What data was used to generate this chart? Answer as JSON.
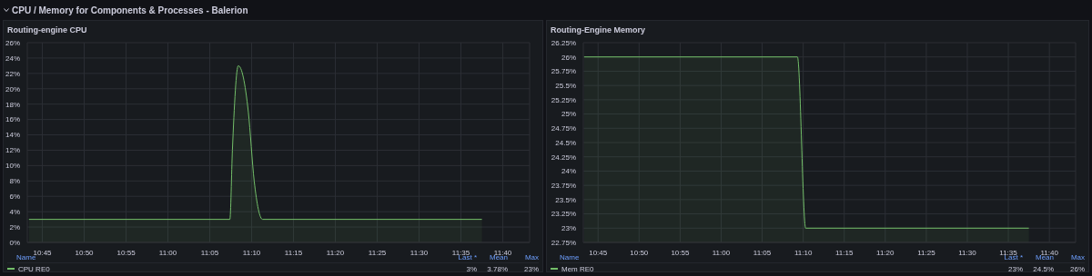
{
  "chart_data": [
    {
      "type": "area",
      "title": "Routing-engine CPU",
      "annotations": [
        "CPU / Memory for Components & Processes - Balerion",
        "Name",
        "Last *",
        "Mean",
        "Max",
        "3%",
        "3.78%",
        "23%"
      ],
      "series": [
        {
          "name": "CPU RE0",
          "color": "#73bf69",
          "x": [
            10.7233,
            11.1233,
            11.1283,
            11.14,
            11.15,
            11.16,
            11.1717,
            11.1883,
            11.625
          ],
          "values": [
            3,
            3,
            12,
            23,
            21.5,
            17,
            8,
            3,
            3
          ]
        }
      ],
      "xlim": [
        10.72,
        11.72
      ],
      "xticks": [
        {
          "value": 10.75,
          "label": "10:45"
        },
        {
          "value": 10.8333,
          "label": "10:50"
        },
        {
          "value": 10.9167,
          "label": "10:55"
        },
        {
          "value": 11,
          "label": "11:00"
        },
        {
          "value": 11.0833,
          "label": "11:05"
        },
        {
          "value": 11.1667,
          "label": "11:10"
        },
        {
          "value": 11.25,
          "label": "11:15"
        },
        {
          "value": 11.3333,
          "label": "11:20"
        },
        {
          "value": 11.4167,
          "label": "11:25"
        },
        {
          "value": 11.5,
          "label": "11:30"
        },
        {
          "value": 11.5833,
          "label": "11:35"
        },
        {
          "value": 11.6667,
          "label": "11:40"
        }
      ],
      "ylim": [
        0,
        26
      ],
      "yticks": [
        {
          "value": 0,
          "label": "0%"
        },
        {
          "value": 2,
          "label": "2%"
        },
        {
          "value": 4,
          "label": "4%"
        },
        {
          "value": 6,
          "label": "6%"
        },
        {
          "value": 8,
          "label": "8%"
        },
        {
          "value": 10,
          "label": "10%"
        },
        {
          "value": 12,
          "label": "12%"
        },
        {
          "value": 14,
          "label": "14%"
        },
        {
          "value": 16,
          "label": "16%"
        },
        {
          "value": 18,
          "label": "18%"
        },
        {
          "value": 20,
          "label": "20%"
        },
        {
          "value": 22,
          "label": "22%"
        },
        {
          "value": 24,
          "label": "24%"
        },
        {
          "value": 26,
          "label": "26%"
        }
      ],
      "grid": true,
      "legend": "bottom"
    },
    {
      "type": "area",
      "title": "Routing-Engine Memory",
      "annotations": [
        "Name",
        "Last *",
        "Mean",
        "Max",
        "23%",
        "24.5%",
        "26%"
      ],
      "series": [
        {
          "name": "Mem RE0",
          "color": "#73bf69",
          "x": [
            10.7217,
            11.155,
            11.1717,
            11.625
          ],
          "values": [
            26,
            26,
            23,
            23
          ]
        }
      ],
      "xlim": [
        10.72,
        11.72
      ],
      "xticks": [
        {
          "value": 10.75,
          "label": "10:45"
        },
        {
          "value": 10.8333,
          "label": "10:50"
        },
        {
          "value": 10.9167,
          "label": "10:55"
        },
        {
          "value": 11,
          "label": "11:00"
        },
        {
          "value": 11.0833,
          "label": "11:05"
        },
        {
          "value": 11.1667,
          "label": "11:10"
        },
        {
          "value": 11.25,
          "label": "11:15"
        },
        {
          "value": 11.3333,
          "label": "11:20"
        },
        {
          "value": 11.4167,
          "label": "11:25"
        },
        {
          "value": 11.5,
          "label": "11:30"
        },
        {
          "value": 11.5833,
          "label": "11:35"
        },
        {
          "value": 11.6667,
          "label": "11:40"
        }
      ],
      "ylim": [
        22.75,
        26.25
      ],
      "yticks": [
        {
          "value": 22.75,
          "label": "22.75%"
        },
        {
          "value": 23,
          "label": "23%"
        },
        {
          "value": 23.25,
          "label": "23.25%"
        },
        {
          "value": 23.5,
          "label": "23.5%"
        },
        {
          "value": 23.75,
          "label": "23.75%"
        },
        {
          "value": 24,
          "label": "24%"
        },
        {
          "value": 24.25,
          "label": "24.25%"
        },
        {
          "value": 24.5,
          "label": "24.5%"
        },
        {
          "value": 24.75,
          "label": "24.75%"
        },
        {
          "value": 25,
          "label": "25%"
        },
        {
          "value": 25.25,
          "label": "25.25%"
        },
        {
          "value": 25.5,
          "label": "25.5%"
        },
        {
          "value": 25.75,
          "label": "25.75%"
        },
        {
          "value": 26,
          "label": "26%"
        },
        {
          "value": 26.25,
          "label": "26.25%"
        }
      ],
      "grid": true,
      "legend": "bottom"
    }
  ]
}
